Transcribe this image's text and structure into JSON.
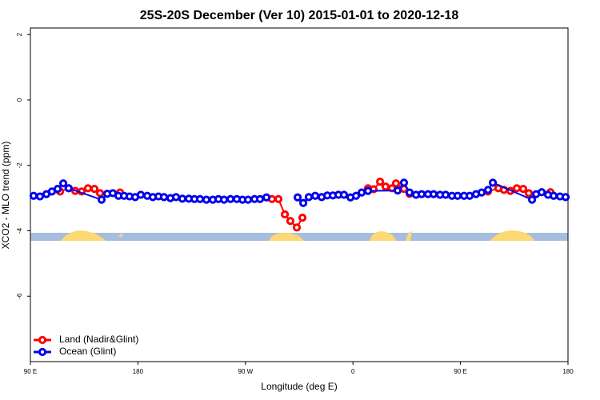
{
  "chart_data": {
    "type": "line",
    "title": "25S-20S December (Ver 10)   2015-01-01 to 2020-12-18",
    "xlabel": "Longitude (deg E)",
    "ylabel": "XCO2 - MLO trend (ppm)",
    "xlim": [
      90,
      540
    ],
    "ylim": [
      -8,
      2.2
    ],
    "xticks": [
      {
        "value": 90,
        "label": "90 E"
      },
      180,
      {
        "value": 270,
        "label": "90 W"
      },
      {
        "value": 360,
        "label": "0"
      },
      {
        "value": 450,
        "label": "90 E"
      },
      {
        "value": 540,
        "label": "180"
      }
    ],
    "yticks": [
      2,
      0,
      -2,
      -4,
      -6
    ],
    "legend": "bottomleft",
    "series": [
      {
        "name": "Land (Nadir&Glint)",
        "color": "#ff0000",
        "x": [
          114.8,
          122.1,
          127.5,
          132.9,
          138.2,
          143.6,
          148.3,
          156,
          165,
          230,
          292.2,
          297.6,
          303,
          307.6,
          313,
          317.7,
          345,
          372.6,
          377.3,
          382.7,
          387.3,
          392.7,
          396,
          402.7,
          407.4,
          440,
          473,
          481.7,
          486.4,
          491.8,
          497.2,
          502.5,
          507.2,
          515,
          525.3
        ],
        "values": [
          -2.8,
          -2.7,
          -2.78,
          -2.8,
          -2.7,
          -2.72,
          -2.85,
          null,
          -2.83,
          null,
          -3.03,
          -3.03,
          -3.5,
          -3.7,
          -3.9,
          -3.6,
          null,
          -2.7,
          -2.73,
          -2.5,
          -2.65,
          -2.7,
          -2.55,
          -2.72,
          -2.87,
          null,
          -2.8,
          -2.7,
          -2.75,
          -2.78,
          -2.7,
          -2.72,
          -2.85,
          null,
          -2.82
        ]
      },
      {
        "name": "Ocean (Glint)",
        "color": "#0000ee",
        "x": [
          92.7,
          98,
          103.4,
          108,
          112.8,
          117.5,
          122,
          149.6,
          154.3,
          159,
          163.7,
          168.4,
          173,
          177.7,
          182.4,
          187.8,
          192.5,
          197.2,
          201.8,
          207.2,
          211.9,
          217.2,
          222.6,
          227.3,
          232,
          237.3,
          242.7,
          247.4,
          252.1,
          257.5,
          262.8,
          267.5,
          272.2,
          277.6,
          282.2,
          287.6,
          300,
          313.7,
          318.4,
          323,
          328.4,
          333.8,
          338.5,
          343.2,
          347.8,
          352.5,
          357.9,
          362.6,
          367.3,
          372.6,
          397.4,
          402.7,
          407.4,
          412.8,
          417.5,
          422.8,
          427.5,
          432.9,
          437.6,
          442.9,
          447.6,
          453,
          457.7,
          463,
          467.7,
          473.1,
          477.1,
          509.9,
          513.3,
          518,
          523.3,
          528,
          533.3,
          538
        ],
        "values": [
          -2.93,
          -2.95,
          -2.88,
          -2.8,
          -2.72,
          -2.55,
          -2.7,
          -3.05,
          -2.87,
          -2.85,
          -2.93,
          -2.93,
          -2.95,
          -2.97,
          -2.9,
          -2.93,
          -2.97,
          -2.95,
          -2.97,
          -3.0,
          -2.97,
          -3.02,
          -3.02,
          -3.03,
          -3.03,
          -3.05,
          -3.05,
          -3.03,
          -3.05,
          -3.03,
          -3.03,
          -3.05,
          -3.05,
          -3.03,
          -3.03,
          -2.98,
          null,
          -2.98,
          -3.15,
          -2.97,
          -2.93,
          -2.97,
          -2.92,
          -2.92,
          -2.9,
          -2.9,
          -2.98,
          -2.93,
          -2.83,
          -2.78,
          -2.77,
          -2.53,
          -2.83,
          -2.9,
          -2.88,
          -2.88,
          -2.88,
          -2.9,
          -2.9,
          -2.93,
          -2.93,
          -2.93,
          -2.93,
          -2.88,
          -2.83,
          -2.75,
          -2.53,
          -3.05,
          -2.88,
          -2.82,
          -2.9,
          -2.93,
          -2.95,
          -2.97
        ]
      }
    ]
  }
}
